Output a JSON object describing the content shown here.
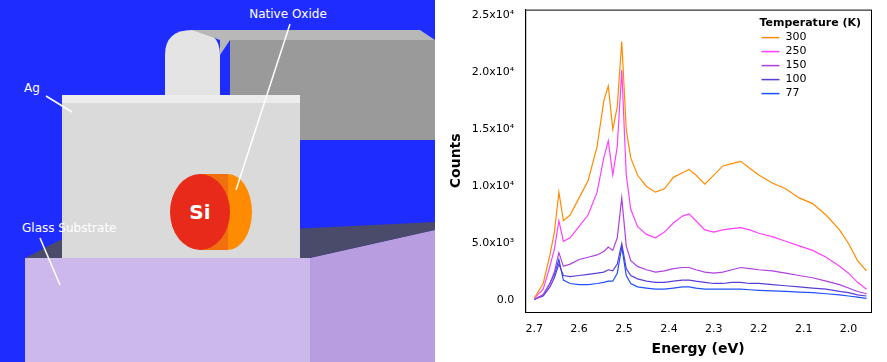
{
  "diagram": {
    "labels": [
      "Ag",
      "Native Oxide",
      "Glass Substrate",
      "Si"
    ]
  },
  "chart_data": {
    "type": "line",
    "xlabel": "Energy (eV)",
    "ylabel": "Counts",
    "legend_title": "Temperature (K)",
    "legend": "upper right",
    "grid": false,
    "xlim": [
      2.72,
      1.95
    ],
    "ylim": [
      -1000,
      25500
    ],
    "xticks": [
      2.7,
      2.6,
      2.5,
      2.4,
      2.3,
      2.2,
      2.1,
      {
        "value": 2,
        "label": "2.0"
      }
    ],
    "yticks": [
      {
        "value": 0,
        "label": "0.0"
      },
      {
        "value": 5000,
        "label": "5.0x10³"
      },
      {
        "value": 10000,
        "label": "1.0x10⁴"
      },
      {
        "value": 15000,
        "label": "1.5x10⁴"
      },
      {
        "value": 20000,
        "label": "2.0x10⁴"
      },
      {
        "value": 25000,
        "label": "2.5x10⁴"
      }
    ],
    "x": [
      2.7,
      2.68,
      2.665,
      2.655,
      2.645,
      2.635,
      2.62,
      2.6,
      2.58,
      2.56,
      2.545,
      2.535,
      2.525,
      2.515,
      2.505,
      2.495,
      2.485,
      2.47,
      2.45,
      2.43,
      2.41,
      2.39,
      2.37,
      2.355,
      2.34,
      2.32,
      2.3,
      2.28,
      2.26,
      2.24,
      2.22,
      2.2,
      2.17,
      2.14,
      2.11,
      2.08,
      2.05,
      2.02,
      2.0,
      1.98,
      1.96
    ],
    "series": [
      {
        "name": "300",
        "color": "#ff8c00",
        "values": [
          200,
          1500,
          4000,
          6000,
          9500,
          7000,
          7500,
          9000,
          10500,
          13500,
          17500,
          18800,
          15000,
          17000,
          22700,
          15000,
          12500,
          11000,
          10000,
          9500,
          9800,
          10800,
          11200,
          11500,
          11000,
          10200,
          11000,
          11800,
          12000,
          12200,
          11600,
          11000,
          10300,
          9800,
          9000,
          8500,
          7500,
          6200,
          5000,
          3500,
          2600
        ]
      },
      {
        "name": "250",
        "color": "#ff40ff",
        "values": [
          200,
          1000,
          3000,
          4500,
          7000,
          5200,
          5500,
          6500,
          7500,
          9500,
          12500,
          14000,
          11000,
          13500,
          20200,
          11000,
          8000,
          6500,
          5800,
          5500,
          6000,
          6800,
          7400,
          7600,
          7000,
          6200,
          6000,
          6200,
          6300,
          6400,
          6200,
          5900,
          5600,
          5200,
          4800,
          4400,
          3800,
          3000,
          2400,
          1600,
          1000
        ]
      },
      {
        "name": "150",
        "color": "#b040e0",
        "values": [
          100,
          500,
          1500,
          2500,
          4200,
          3000,
          3200,
          3600,
          3800,
          4000,
          4300,
          4700,
          4400,
          5500,
          9000,
          4800,
          3500,
          3000,
          2700,
          2500,
          2600,
          2800,
          2900,
          2900,
          2700,
          2500,
          2400,
          2500,
          2700,
          2900,
          2800,
          2700,
          2600,
          2400,
          2200,
          2000,
          1700,
          1400,
          1100,
          800,
          600
        ]
      },
      {
        "name": "100",
        "color": "#5a3ed6",
        "values": [
          100,
          400,
          1200,
          2000,
          3200,
          2200,
          2100,
          2200,
          2300,
          2400,
          2500,
          2700,
          2600,
          3200,
          5000,
          2800,
          2200,
          1900,
          1700,
          1600,
          1600,
          1700,
          1800,
          1800,
          1700,
          1600,
          1500,
          1500,
          1600,
          1600,
          1500,
          1500,
          1400,
          1300,
          1200,
          1100,
          1000,
          800,
          700,
          500,
          400
        ]
      },
      {
        "name": "77",
        "color": "#2050ff",
        "values": [
          100,
          500,
          1500,
          2300,
          3600,
          1800,
          1500,
          1400,
          1400,
          1500,
          1600,
          1700,
          1700,
          2400,
          4700,
          2200,
          1500,
          1200,
          1100,
          1000,
          1000,
          1100,
          1200,
          1200,
          1100,
          1000,
          1000,
          1000,
          1000,
          1000,
          950,
          900,
          850,
          800,
          750,
          700,
          600,
          500,
          400,
          300,
          200
        ]
      }
    ]
  }
}
